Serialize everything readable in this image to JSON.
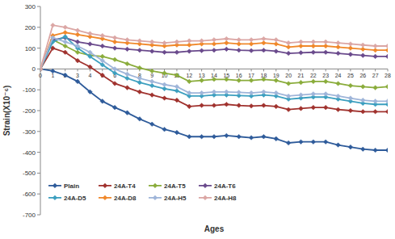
{
  "chart_data": {
    "type": "line",
    "x_label": "Ages",
    "y_label": "Strain(X10⁻⁶)",
    "x": [
      0,
      1,
      2,
      3,
      4,
      5,
      6,
      7,
      8,
      9,
      10,
      11,
      12,
      13,
      14,
      15,
      16,
      17,
      18,
      19,
      20,
      21,
      22,
      23,
      24,
      25,
      26,
      27,
      28
    ],
    "xlim": [
      0,
      28
    ],
    "xticks": [
      0,
      1,
      2,
      3,
      4,
      5,
      6,
      7,
      8,
      9,
      10,
      11,
      12,
      13,
      14,
      15,
      16,
      17,
      18,
      19,
      20,
      21,
      22,
      23,
      24,
      25,
      26,
      27,
      28
    ],
    "ylim": [
      -700,
      300
    ],
    "yticks": [
      -700,
      -600,
      -500,
      -400,
      -300,
      -200,
      -100,
      0,
      100,
      200,
      300
    ],
    "grid": false,
    "legend": "bottom-left",
    "marker": "diamond",
    "series": [
      {
        "name": "Plain",
        "color": "#2e5b9a",
        "values": [
          0,
          -10,
          -30,
          -60,
          -110,
          -155,
          -185,
          -210,
          -240,
          -265,
          -290,
          -305,
          -325,
          -325,
          -325,
          -320,
          -325,
          -330,
          -325,
          -335,
          -355,
          -350,
          -350,
          -350,
          -365,
          -375,
          -385,
          -390,
          -390
        ]
      },
      {
        "name": "24A-T4",
        "color": "#a0322e",
        "values": [
          0,
          100,
          80,
          40,
          10,
          -30,
          -70,
          -90,
          -110,
          -125,
          -140,
          -150,
          -180,
          -175,
          -175,
          -170,
          -175,
          -178,
          -175,
          -180,
          -195,
          -190,
          -185,
          -185,
          -195,
          -200,
          -205,
          -205,
          -205
        ]
      },
      {
        "name": "24A-T5",
        "color": "#8aac3b",
        "values": [
          0,
          140,
          110,
          80,
          65,
          60,
          45,
          25,
          5,
          -10,
          -20,
          -30,
          -60,
          -55,
          -50,
          -50,
          -55,
          -55,
          -50,
          -55,
          -70,
          -65,
          -60,
          -60,
          -70,
          -80,
          -85,
          -90,
          -85
        ]
      },
      {
        "name": "24A-T6",
        "color": "#6a4a8c",
        "values": [
          0,
          140,
          150,
          130,
          120,
          110,
          100,
          95,
          90,
          85,
          80,
          80,
          85,
          88,
          90,
          95,
          90,
          88,
          90,
          85,
          75,
          78,
          80,
          80,
          75,
          70,
          65,
          60,
          60
        ]
      },
      {
        "name": "24A-D5",
        "color": "#3c9fbf",
        "values": [
          0,
          130,
          155,
          100,
          60,
          20,
          -20,
          -45,
          -65,
          -80,
          -95,
          -105,
          -130,
          -130,
          -125,
          -125,
          -128,
          -130,
          -125,
          -130,
          -145,
          -140,
          -135,
          -135,
          -145,
          -155,
          -165,
          -170,
          -170
        ]
      },
      {
        "name": "24A-D8",
        "color": "#f0882a",
        "values": [
          0,
          160,
          175,
          165,
          155,
          145,
          130,
          125,
          120,
          115,
          110,
          115,
          115,
          120,
          120,
          125,
          120,
          120,
          125,
          120,
          105,
          110,
          110,
          110,
          105,
          100,
          95,
          90,
          90
        ]
      },
      {
        "name": "24A-H5",
        "color": "#9fb5d9",
        "values": [
          0,
          150,
          130,
          110,
          80,
          40,
          0,
          -25,
          -45,
          -60,
          -75,
          -85,
          -115,
          -115,
          -110,
          -110,
          -112,
          -115,
          -110,
          -115,
          -130,
          -125,
          -120,
          -120,
          -130,
          -140,
          -150,
          -155,
          -155
        ]
      },
      {
        "name": "24A-H8",
        "color": "#dba6a4",
        "values": [
          0,
          210,
          200,
          185,
          170,
          160,
          150,
          140,
          135,
          130,
          125,
          130,
          135,
          135,
          140,
          145,
          140,
          140,
          145,
          140,
          125,
          130,
          130,
          130,
          125,
          120,
          115,
          110,
          110
        ]
      }
    ]
  }
}
